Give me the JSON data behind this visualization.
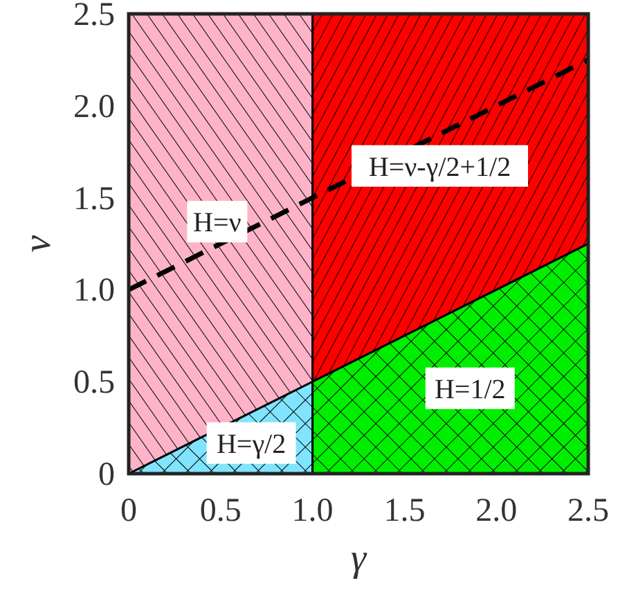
{
  "chart_data": {
    "type": "area",
    "xlabel": "γ",
    "ylabel": "ν",
    "xlim": [
      0,
      2.5
    ],
    "ylim": [
      0,
      2.5
    ],
    "xticks": [
      0,
      0.5,
      "1.0",
      1.5,
      "2.0",
      2.5
    ],
    "yticks": [
      0,
      0.5,
      "1.0",
      1.5,
      "2.0",
      2.5
    ],
    "series": [
      {
        "name": "H=ν",
        "color": "#ffb3c8",
        "x": [
          0,
          1
        ],
        "values": [
          2.5,
          2.5
        ]
      },
      {
        "name": "H=γ/2",
        "color": "#80e4ff",
        "x": [
          0,
          1
        ],
        "values": [
          0,
          0.5
        ]
      },
      {
        "name": "H=ν-γ/2+1/2",
        "color": "#ff0000",
        "x": [
          1,
          2.5
        ],
        "values": [
          2.5,
          2.5
        ]
      },
      {
        "name": "H=1/2",
        "color": "#00ee00",
        "x": [
          1,
          2.5
        ],
        "values": [
          0.5,
          1.25
        ]
      },
      {
        "type": "line",
        "color": "#000000",
        "line_style": "dashed",
        "x": [
          0,
          2.5
        ],
        "values": [
          1,
          2.25
        ]
      }
    ]
  }
}
